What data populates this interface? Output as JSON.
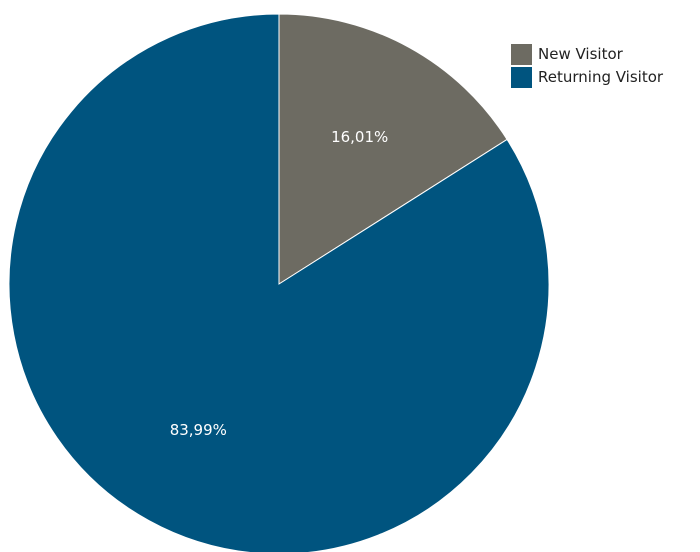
{
  "chart_data": {
    "type": "pie",
    "title": "",
    "slices": [
      {
        "name": "New Visitor",
        "value": 16.01,
        "label": "16,01%",
        "color": "#6d6b62"
      },
      {
        "name": "Returning Visitor",
        "value": 83.99,
        "label": "83,99%",
        "color": "#00547f"
      }
    ],
    "start_angle": "12-o'clock",
    "direction": "clockwise",
    "legend": {
      "position": "top-right",
      "items": [
        "New Visitor",
        "Returning Visitor"
      ]
    }
  }
}
